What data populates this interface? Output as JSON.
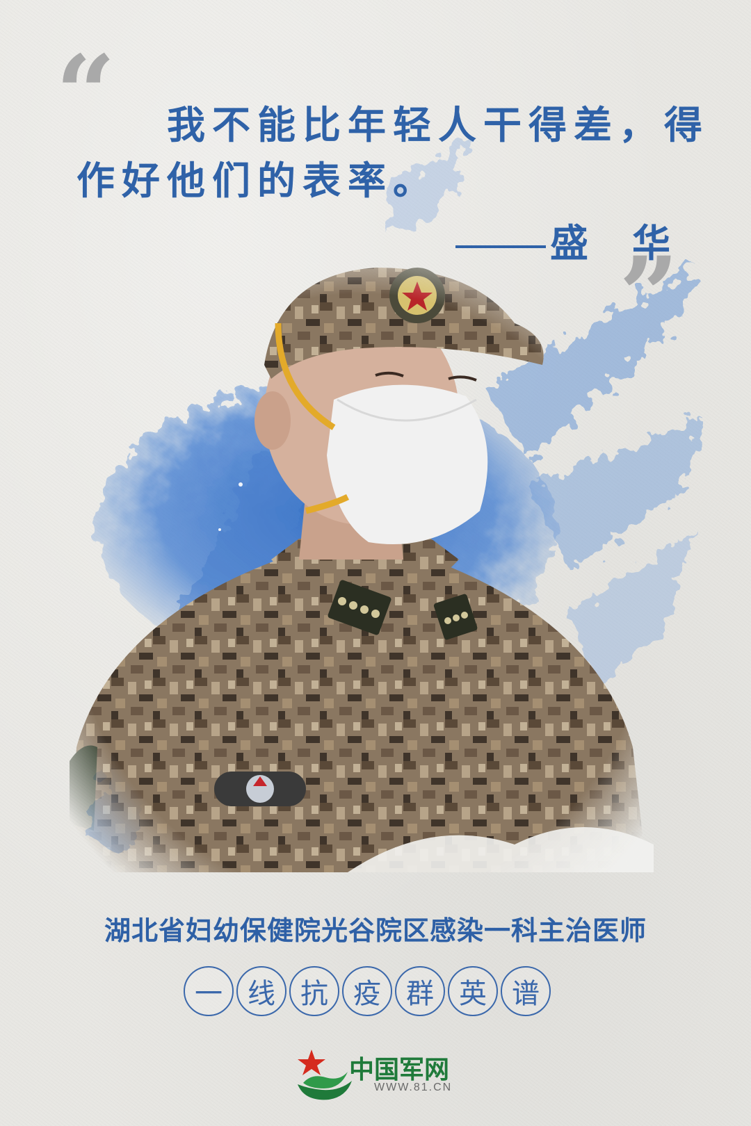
{
  "quote": {
    "line1": "我不能比年轻人干得差，得",
    "line2": "作好他们的表率。",
    "author": "盛　华",
    "open_mark_icon": "open-quote-icon",
    "close_mark_icon": "close-quote-icon"
  },
  "person": {
    "photo_icon": "portrait-photo"
  },
  "caption": {
    "position_title": "湖北省妇幼保健院光谷院区感染一科主治医师",
    "series_chars": [
      "一",
      "线",
      "抗",
      "疫",
      "群",
      "英",
      "谱"
    ]
  },
  "brand": {
    "name": "中国军网",
    "url": "WWW.81.CN"
  },
  "colors": {
    "quote_blue": "#2f62a8",
    "title_blue": "#2e60a6",
    "brand_green": "#1f7a3a",
    "quote_mark_gray": "#a9a9a9"
  }
}
